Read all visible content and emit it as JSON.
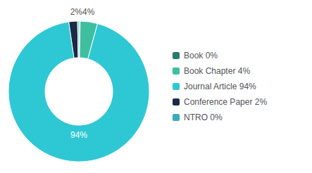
{
  "chart_data": {
    "type": "pie",
    "categories": [
      "Book 0%",
      "Book Chapter 4%",
      "Journal Article 94%",
      "Conference Paper 2%",
      "NTRO 0%"
    ],
    "values": [
      0.3,
      4,
      94,
      2,
      0.3
    ],
    "colors": [
      "#2a7b6f",
      "#3dbfa0",
      "#2ec8d4",
      "#1b2a45",
      "#3aacb8"
    ],
    "annotations": [
      {
        "text": "94%",
        "color": "white"
      },
      {
        "text": "2%4%",
        "color": "#555555"
      }
    ],
    "legend": "right"
  }
}
